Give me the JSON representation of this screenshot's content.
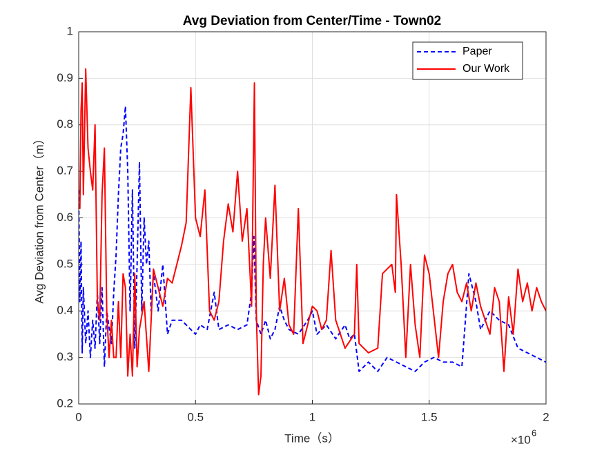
{
  "chart_data": {
    "type": "line",
    "title": "Avg Deviation from Center/Time - Town02",
    "x_label": "Time（s）",
    "y_label": "Avg Deviation from Center（m）",
    "x_multiplier": "×10",
    "x_multiplier_exponent": "6",
    "xlim": [
      0,
      2
    ],
    "xticks": [
      0,
      0.5,
      1,
      1.5,
      2
    ],
    "ylim": [
      0.2,
      1
    ],
    "yticks": [
      0.2,
      0.3,
      0.4,
      0.5,
      0.6,
      0.7,
      0.8,
      0.9,
      1
    ],
    "grid": true,
    "legend": "northeast",
    "series": [
      {
        "name": "Paper",
        "color": "#0000ff",
        "dash": "dashed",
        "x": [
          0,
          0.005,
          0.01,
          0.015,
          0.02,
          0.03,
          0.04,
          0.05,
          0.06,
          0.07,
          0.08,
          0.09,
          0.1,
          0.11,
          0.12,
          0.14,
          0.15,
          0.16,
          0.17,
          0.18,
          0.19,
          0.2,
          0.21,
          0.22,
          0.23,
          0.24,
          0.25,
          0.26,
          0.27,
          0.28,
          0.29,
          0.3,
          0.31,
          0.32,
          0.34,
          0.36,
          0.38,
          0.4,
          0.44,
          0.48,
          0.5,
          0.52,
          0.55,
          0.58,
          0.6,
          0.64,
          0.68,
          0.72,
          0.74,
          0.75,
          0.76,
          0.78,
          0.8,
          0.82,
          0.84,
          0.86,
          0.88,
          0.9,
          0.94,
          0.98,
          1,
          1.02,
          1.06,
          1.1,
          1.14,
          1.16,
          1.18,
          1.2,
          1.24,
          1.28,
          1.32,
          1.36,
          1.4,
          1.44,
          1.48,
          1.52,
          1.56,
          1.6,
          1.64,
          1.67,
          1.7,
          1.72,
          1.76,
          1.8,
          1.84,
          1.88,
          1.92,
          1.96,
          2
        ],
        "values": [
          0.66,
          0.42,
          0.55,
          0.31,
          0.45,
          0.33,
          0.4,
          0.3,
          0.38,
          0.32,
          0.44,
          0.33,
          0.45,
          0.28,
          0.4,
          0.33,
          0.44,
          0.52,
          0.65,
          0.75,
          0.78,
          0.84,
          0.7,
          0.4,
          0.66,
          0.32,
          0.5,
          0.72,
          0.4,
          0.6,
          0.5,
          0.55,
          0.4,
          0.48,
          0.4,
          0.5,
          0.35,
          0.38,
          0.38,
          0.36,
          0.35,
          0.37,
          0.36,
          0.44,
          0.36,
          0.37,
          0.36,
          0.37,
          0.44,
          0.56,
          0.38,
          0.35,
          0.38,
          0.34,
          0.36,
          0.41,
          0.38,
          0.36,
          0.35,
          0.38,
          0.4,
          0.35,
          0.37,
          0.34,
          0.37,
          0.34,
          0.35,
          0.27,
          0.29,
          0.27,
          0.3,
          0.29,
          0.28,
          0.27,
          0.29,
          0.3,
          0.29,
          0.29,
          0.28,
          0.48,
          0.42,
          0.36,
          0.4,
          0.38,
          0.37,
          0.32,
          0.31,
          0.3,
          0.29
        ]
      },
      {
        "name": "Our Work",
        "color": "#ff0000",
        "dash": "solid",
        "x": [
          0,
          0.005,
          0.01,
          0.015,
          0.02,
          0.03,
          0.04,
          0.05,
          0.06,
          0.07,
          0.08,
          0.09,
          0.1,
          0.11,
          0.12,
          0.13,
          0.14,
          0.15,
          0.16,
          0.17,
          0.18,
          0.19,
          0.2,
          0.21,
          0.22,
          0.23,
          0.24,
          0.25,
          0.26,
          0.28,
          0.3,
          0.32,
          0.34,
          0.36,
          0.38,
          0.4,
          0.42,
          0.44,
          0.46,
          0.48,
          0.5,
          0.52,
          0.54,
          0.56,
          0.58,
          0.6,
          0.62,
          0.64,
          0.66,
          0.68,
          0.7,
          0.72,
          0.74,
          0.752,
          0.76,
          0.77,
          0.78,
          0.79,
          0.8,
          0.82,
          0.84,
          0.86,
          0.88,
          0.9,
          0.92,
          0.94,
          0.96,
          1,
          1.02,
          1.04,
          1.06,
          1.08,
          1.1,
          1.14,
          1.18,
          1.19,
          1.2,
          1.24,
          1.28,
          1.3,
          1.34,
          1.355,
          1.36,
          1.38,
          1.4,
          1.42,
          1.44,
          1.46,
          1.48,
          1.5,
          1.54,
          1.56,
          1.58,
          1.6,
          1.62,
          1.64,
          1.66,
          1.68,
          1.7,
          1.72,
          1.76,
          1.78,
          1.8,
          1.82,
          1.84,
          1.86,
          1.88,
          1.9,
          1.92,
          1.94,
          1.96,
          1.98,
          2
        ],
        "values": [
          0.62,
          0.62,
          0.83,
          0.89,
          0.65,
          0.92,
          0.75,
          0.7,
          0.66,
          0.8,
          0.42,
          0.38,
          0.65,
          0.75,
          0.4,
          0.3,
          0.38,
          0.3,
          0.3,
          0.42,
          0.3,
          0.48,
          0.45,
          0.26,
          0.35,
          0.26,
          0.48,
          0.28,
          0.36,
          0.42,
          0.27,
          0.49,
          0.45,
          0.41,
          0.47,
          0.46,
          0.5,
          0.54,
          0.59,
          0.88,
          0.6,
          0.56,
          0.66,
          0.4,
          0.38,
          0.42,
          0.55,
          0.63,
          0.57,
          0.7,
          0.55,
          0.62,
          0.41,
          0.89,
          0.4,
          0.22,
          0.26,
          0.5,
          0.6,
          0.47,
          0.67,
          0.4,
          0.47,
          0.37,
          0.35,
          0.62,
          0.33,
          0.41,
          0.4,
          0.36,
          0.38,
          0.53,
          0.38,
          0.32,
          0.35,
          0.5,
          0.33,
          0.31,
          0.32,
          0.48,
          0.5,
          0.44,
          0.65,
          0.5,
          0.3,
          0.5,
          0.37,
          0.3,
          0.52,
          0.48,
          0.3,
          0.42,
          0.48,
          0.5,
          0.44,
          0.42,
          0.46,
          0.4,
          0.46,
          0.41,
          0.35,
          0.45,
          0.42,
          0.27,
          0.43,
          0.35,
          0.49,
          0.42,
          0.46,
          0.4,
          0.45,
          0.42,
          0.4
        ]
      }
    ]
  }
}
